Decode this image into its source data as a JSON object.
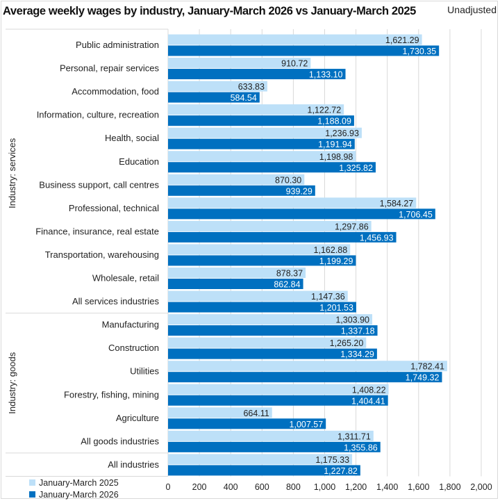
{
  "header": {
    "title": "Average weekly wages by industry, January-March 2026 vs January-March 2025",
    "adjustment_label": "Unadjusted"
  },
  "colors": {
    "series_2025": "#BDE0F8",
    "series_2026": "#0070C0",
    "gridline": "#d9d9d9",
    "separator": "#d9d9d9"
  },
  "chart_data": {
    "type": "bar",
    "orientation": "horizontal",
    "title": "Average weekly wages by industry, January-March 2026 vs January-March 2025",
    "subtitle": "Unadjusted",
    "xlabel": "",
    "ylabel": "",
    "xlim": [
      0,
      2000
    ],
    "x_ticks": [
      0,
      200,
      400,
      600,
      800,
      1000,
      1200,
      1400,
      1600,
      1800,
      2000
    ],
    "x_tick_labels": [
      "0",
      "200",
      "400",
      "600",
      "800",
      "1,000",
      "1,200",
      "1,400",
      "1,600",
      "1,800",
      "2,000"
    ],
    "grid": true,
    "legend_position": "bottom-left",
    "groups": [
      {
        "name": "Industry: services",
        "start": 0,
        "end": 11
      },
      {
        "name": "Industry: goods",
        "start": 12,
        "end": 17
      },
      {
        "name": "",
        "start": 18,
        "end": 18
      }
    ],
    "categories": [
      "Public administration",
      "Personal, repair services",
      "Accommodation, food",
      "Information, culture, recreation",
      "Health, social",
      "Education",
      "Business support, call centres",
      "Professional, technical",
      "Finance, insurance, real estate",
      "Transportation, warehousing",
      "Wholesale, retail",
      "All services industries",
      "Manufacturing",
      "Construction",
      "Utilities",
      "Forestry, fishing, mining",
      "Agriculture",
      "All goods industries",
      "All industries"
    ],
    "series": [
      {
        "name": "January-March 2025",
        "values": [
          1621.29,
          910.72,
          633.83,
          1122.72,
          1236.93,
          1198.98,
          870.3,
          1584.27,
          1297.86,
          1162.88,
          878.37,
          1147.36,
          1303.9,
          1265.2,
          1782.41,
          1408.22,
          664.11,
          1311.71,
          1175.33
        ],
        "labels": [
          "1,621.29",
          "910.72",
          "633.83",
          "1,122.72",
          "1,236.93",
          "1,198.98",
          "870.30",
          "1,584.27",
          "1,297.86",
          "1,162.88",
          "878.37",
          "1,147.36",
          "1,303.90",
          "1,265.20",
          "1,782.41",
          "1,408.22",
          "664.11",
          "1,311.71",
          "1,175.33"
        ]
      },
      {
        "name": "January-March 2026",
        "values": [
          1730.35,
          1133.1,
          584.54,
          1188.09,
          1191.94,
          1325.82,
          939.29,
          1706.45,
          1456.93,
          1199.29,
          862.84,
          1201.53,
          1337.18,
          1334.29,
          1749.32,
          1404.41,
          1007.57,
          1355.86,
          1227.82
        ],
        "labels": [
          "1,730.35",
          "1,133.10",
          "584.54",
          "1,188.09",
          "1,191.94",
          "1,325.82",
          "939.29",
          "1,706.45",
          "1,456.93",
          "1,199.29",
          "862.84",
          "1,201.53",
          "1,337.18",
          "1,334.29",
          "1,749.32",
          "1,404.41",
          "1,007.57",
          "1,355.86",
          "1,227.82"
        ]
      }
    ]
  },
  "legend": {
    "items": [
      {
        "label": "January-March 2025",
        "color": "#BDE0F8"
      },
      {
        "label": "January-March 2026",
        "color": "#0070C0"
      }
    ]
  }
}
